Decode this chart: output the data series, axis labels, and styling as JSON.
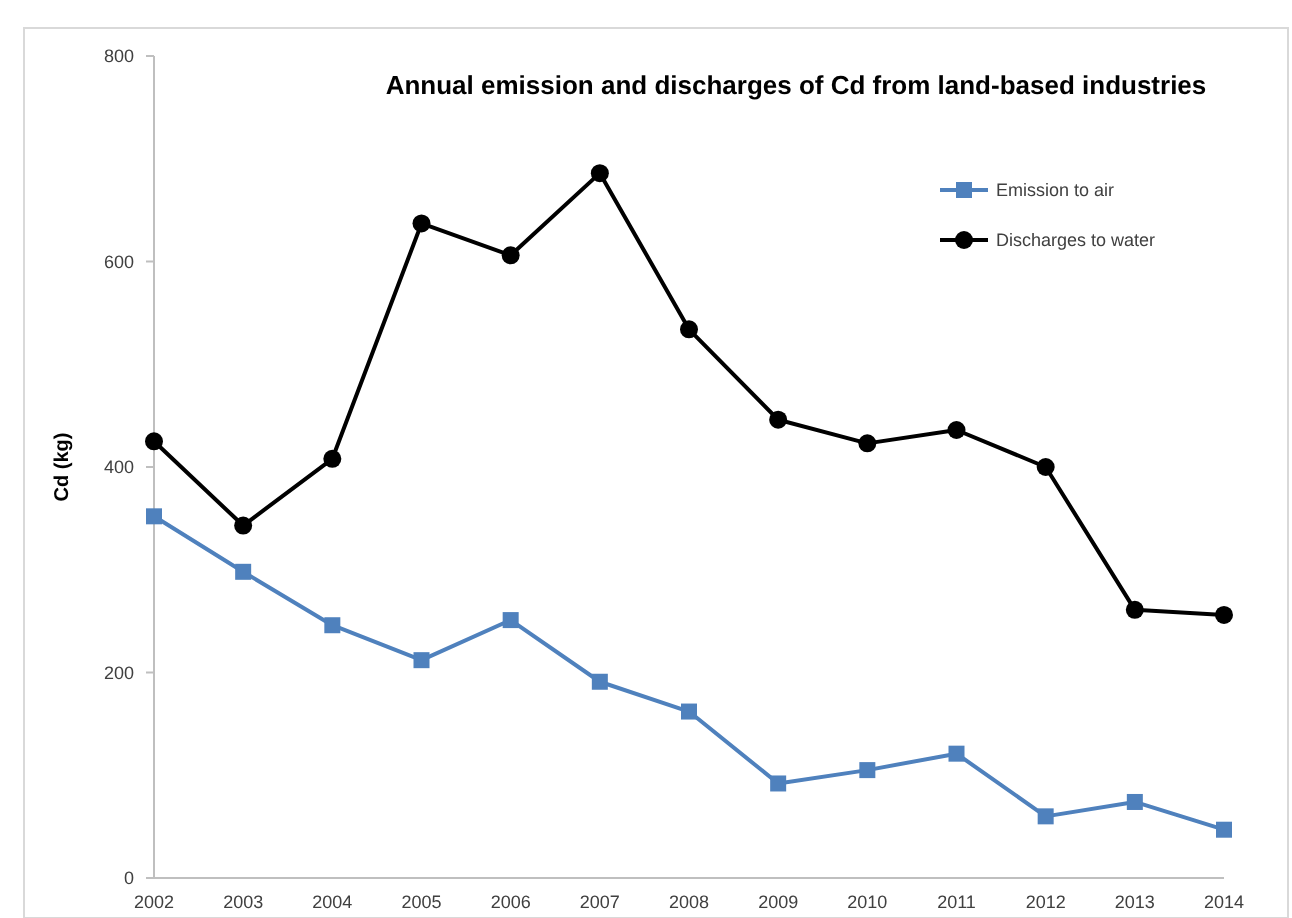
{
  "chart_data": {
    "type": "line",
    "title": "Annual emission and discharges of Cd from land-based industries",
    "ylabel": "Cd (kg)",
    "categories": [
      "2002",
      "2003",
      "2004",
      "2005",
      "2006",
      "2007",
      "2008",
      "2009",
      "2010",
      "2011",
      "2012",
      "2013",
      "2014"
    ],
    "ylim": [
      0,
      800
    ],
    "yticks": [
      0,
      200,
      400,
      600,
      800
    ],
    "grid": false,
    "legend": "top right",
    "line_style": "solid",
    "series": [
      {
        "name": "Emission to air",
        "color": "#4f81bd",
        "marker": "square",
        "values": [
          352,
          298,
          246,
          212,
          251,
          191,
          162,
          92,
          105,
          121,
          60,
          74,
          47
        ]
      },
      {
        "name": "Discharges to water",
        "color": "#000000",
        "marker": "circle",
        "values": [
          425,
          343,
          408,
          637,
          606,
          686,
          534,
          446,
          423,
          436,
          400,
          261,
          256
        ]
      }
    ]
  }
}
